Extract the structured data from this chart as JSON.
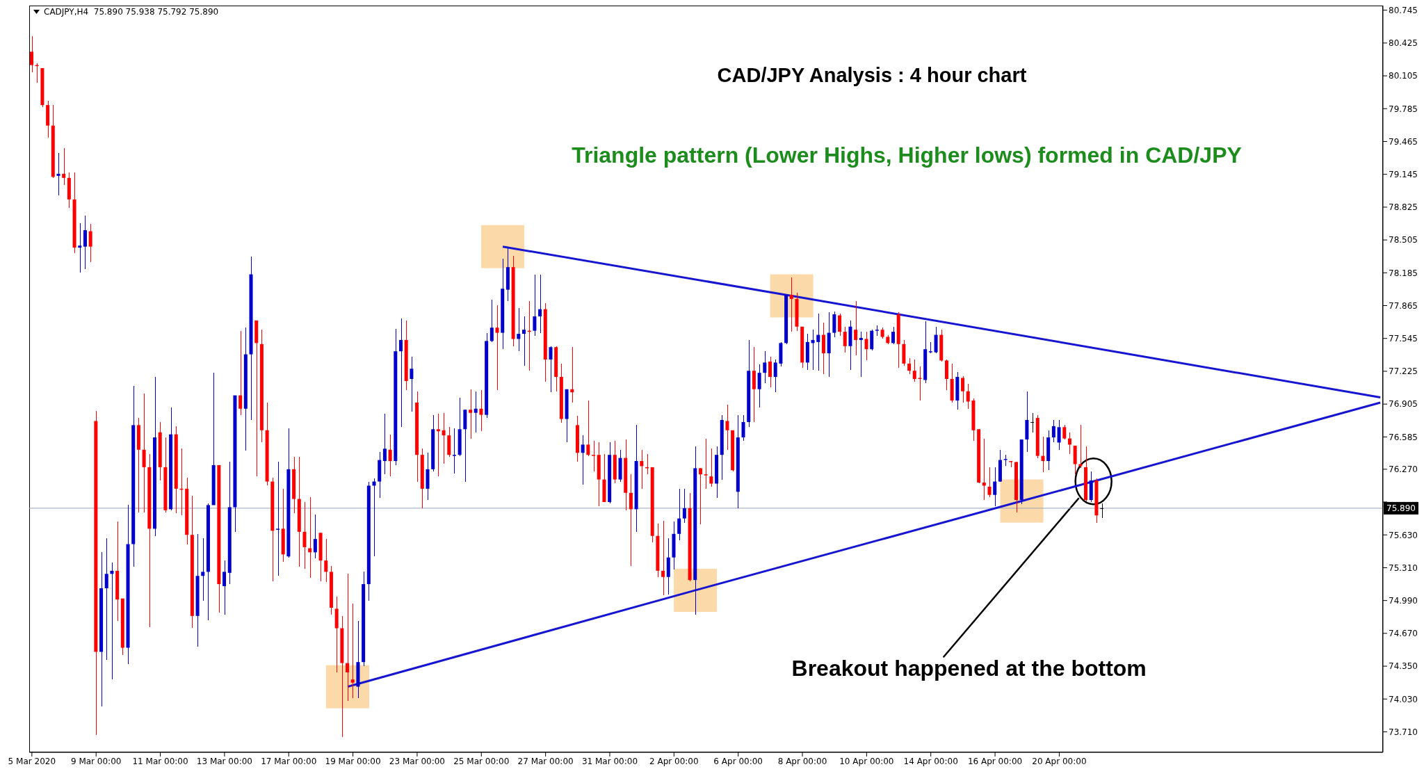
{
  "chart_data": {
    "type": "candlestick",
    "title": "CAD/JPY Analysis : 4 hour chart",
    "subtitle": "Triangle pattern (Lower Highs, Higher lows) formed in CAD/JPY",
    "annotations": [
      "CADJPY,H4  75.890 75.938 75.792 75.890",
      "Breakout happened at the bottom"
    ],
    "categories": [
      "5 Mar 2020",
      null,
      null,
      null,
      null,
      null,
      null,
      null,
      null,
      null,
      null,
      null,
      "9 Mar 00:00",
      null,
      null,
      null,
      null,
      null,
      null,
      null,
      null,
      null,
      null,
      null,
      "11 Mar 00:00",
      null,
      null,
      null,
      null,
      null,
      null,
      null,
      null,
      null,
      null,
      null,
      "13 Mar 00:00",
      null,
      null,
      null,
      null,
      null,
      null,
      null,
      null,
      null,
      null,
      null,
      "17 Mar 00:00",
      null,
      null,
      null,
      null,
      null,
      null,
      null,
      null,
      null,
      null,
      null,
      "19 Mar 00:00",
      null,
      null,
      null,
      null,
      null,
      null,
      null,
      null,
      null,
      null,
      null,
      "23 Mar 00:00",
      null,
      null,
      null,
      null,
      null,
      null,
      null,
      null,
      null,
      null,
      null,
      "25 Mar 00:00",
      null,
      null,
      null,
      null,
      null,
      null,
      null,
      null,
      null,
      null,
      null,
      "27 Mar 00:00",
      null,
      null,
      null,
      null,
      null,
      null,
      null,
      null,
      null,
      null,
      null,
      "31 Mar 00:00",
      null,
      null,
      null,
      null,
      null,
      null,
      null,
      null,
      null,
      null,
      null,
      "2 Apr 00:00",
      null,
      null,
      null,
      null,
      null,
      null,
      null,
      null,
      null,
      null,
      null,
      "6 Apr 00:00",
      null,
      null,
      null,
      null,
      null,
      null,
      null,
      null,
      null,
      null,
      null,
      "8 Apr 00:00",
      null,
      null,
      null,
      null,
      null,
      null,
      null,
      null,
      null,
      null,
      null,
      "10 Apr 00:00",
      null,
      null,
      null,
      null,
      null,
      null,
      null,
      null,
      null,
      null,
      null,
      "14 Apr 00:00",
      null,
      null,
      null,
      null,
      null,
      null,
      null,
      null,
      null,
      null,
      null,
      "16 Apr 00:00",
      null,
      null,
      null,
      null,
      null,
      null,
      null,
      null,
      null,
      null,
      null,
      "20 Apr 00:00",
      null,
      null,
      null,
      null,
      null,
      null,
      null,
      null,
      null,
      null,
      null,
      null,
      null,
      null,
      null,
      null,
      null,
      null,
      null,
      null,
      null,
      null,
      null,
      null,
      null,
      null,
      null,
      null,
      null,
      null,
      null,
      null,
      null,
      null,
      null,
      null,
      null,
      null,
      null,
      null,
      null,
      null,
      null,
      null,
      null,
      null,
      null,
      null,
      null,
      null,
      null,
      null,
      null,
      null,
      null,
      null,
      null,
      null,
      null,
      null
    ],
    "ohlc": [
      [
        80.34,
        80.49,
        80.14,
        80.21
      ],
      [
        80.21,
        80.23,
        80.04,
        80.2
      ],
      [
        80.18,
        80.18,
        79.8,
        79.82
      ],
      [
        79.82,
        79.86,
        79.5,
        79.62
      ],
      [
        79.62,
        79.82,
        79.11,
        79.12
      ],
      [
        79.13,
        79.35,
        78.94,
        79.15
      ],
      [
        79.15,
        79.4,
        79.04,
        79.11
      ],
      [
        79.11,
        79.16,
        78.82,
        78.9
      ],
      [
        78.9,
        79.16,
        78.38,
        78.43
      ],
      [
        78.43,
        78.67,
        78.19,
        78.45
      ],
      [
        78.44,
        78.74,
        78.22,
        78.6
      ],
      [
        78.59,
        78.66,
        78.29,
        78.44
      ],
      [
        76.74,
        76.84,
        73.68,
        74.49
      ],
      [
        74.49,
        75.46,
        73.96,
        75.11
      ],
      [
        75.11,
        75.6,
        74.41,
        75.25
      ],
      [
        75.25,
        75.36,
        74.22,
        75.28
      ],
      [
        75.28,
        75.76,
        74.79,
        75
      ],
      [
        75.01,
        75.01,
        74.46,
        74.53
      ],
      [
        74.53,
        75.92,
        74.37,
        75.54
      ],
      [
        75.54,
        77.08,
        75.32,
        76.7
      ],
      [
        76.7,
        76.77,
        75.85,
        76.46
      ],
      [
        76.46,
        77.01,
        75.85,
        76.29
      ],
      [
        76.29,
        76.42,
        74.73,
        75.69
      ],
      [
        75.69,
        77.17,
        75.62,
        76.58
      ],
      [
        76.63,
        76.73,
        76.16,
        76.29
      ],
      [
        76.29,
        76.58,
        75.85,
        75.87
      ],
      [
        75.88,
        76.87,
        75.87,
        76.61
      ],
      [
        76.61,
        76.69,
        75.84,
        76.08
      ],
      [
        76.08,
        76.47,
        75.82,
        76.07
      ],
      [
        76.08,
        76.19,
        75.54,
        75.63
      ],
      [
        75.63,
        76.01,
        74.72,
        74.84
      ],
      [
        74.84,
        75.64,
        74.54,
        75.23
      ],
      [
        75.23,
        75.6,
        74.99,
        75.27
      ],
      [
        75.27,
        75.94,
        74.8,
        75.92
      ],
      [
        75.92,
        77.21,
        75.92,
        76.31
      ],
      [
        76.31,
        76.31,
        74.87,
        75.15
      ],
      [
        75.13,
        75.38,
        74.85,
        75.27
      ],
      [
        75.26,
        76.34,
        75.15,
        75.9
      ],
      [
        75.9,
        76.99,
        75.66,
        76.99
      ],
      [
        76.99,
        77.62,
        76.8,
        76.86
      ],
      [
        76.86,
        77.65,
        76.45,
        77.39
      ],
      [
        77.39,
        78.34,
        76.75,
        78.17
      ],
      [
        77.72,
        77.72,
        76.2,
        77.5
      ],
      [
        77.49,
        77.63,
        76.53,
        76.65
      ],
      [
        76.65,
        76.92,
        76.11,
        76.15
      ],
      [
        76.15,
        76.19,
        75.18,
        75.67
      ],
      [
        75.68,
        76.34,
        75.23,
        75.69
      ],
      [
        75.69,
        76.08,
        75.37,
        75.44
      ],
      [
        75.42,
        76.67,
        75.41,
        76.27
      ],
      [
        76.27,
        76.39,
        75.84,
        75.98
      ],
      [
        75.98,
        76.39,
        75.32,
        75.66
      ],
      [
        75.66,
        75.95,
        75.3,
        75.51
      ],
      [
        75.5,
        76,
        75.21,
        75.46
      ],
      [
        75.46,
        75.83,
        75.4,
        75.59
      ],
      [
        75.65,
        75.65,
        75.18,
        75.38
      ],
      [
        75.38,
        75.59,
        75.17,
        75.27
      ],
      [
        75.27,
        75.33,
        74.85,
        74.92
      ],
      [
        74.91,
        75.03,
        74.29,
        74.72
      ],
      [
        74.72,
        74.84,
        73.66,
        74.38
      ],
      [
        74.38,
        75.25,
        74.01,
        74.29
      ],
      [
        74.22,
        74.96,
        74.04,
        74.19
      ],
      [
        74.15,
        74.79,
        74.04,
        74.39
      ],
      [
        74.39,
        75.27,
        74.35,
        75.15
      ],
      [
        75.15,
        76.15,
        74.99,
        76.11
      ],
      [
        76.11,
        76.18,
        75.42,
        76.15
      ],
      [
        76.15,
        76.44,
        75.99,
        76.36
      ],
      [
        76.35,
        76.81,
        76.22,
        76.47
      ],
      [
        76.46,
        76.61,
        76.2,
        76.35
      ],
      [
        76.35,
        77.64,
        76.31,
        77.42
      ],
      [
        77.42,
        77.74,
        76.68,
        77.53
      ],
      [
        77.53,
        77.72,
        77.04,
        77.13
      ],
      [
        77.15,
        77.37,
        76.83,
        77.25
      ],
      [
        76.92,
        77.03,
        76.15,
        76.41
      ],
      [
        76.41,
        76.47,
        75.89,
        76.08
      ],
      [
        76.08,
        76.43,
        75.97,
        76.27
      ],
      [
        76.27,
        76.8,
        76.25,
        76.66
      ],
      [
        76.66,
        76.81,
        76.2,
        76.64
      ],
      [
        76.65,
        76.82,
        76.32,
        76.6
      ],
      [
        76.6,
        76.68,
        76.39,
        76.41
      ],
      [
        76.4,
        76.67,
        76.23,
        76.41
      ],
      [
        76.41,
        76.97,
        76.4,
        76.66
      ],
      [
        76.66,
        76.85,
        76.15,
        76.85
      ],
      [
        76.85,
        77.05,
        76.57,
        76.82
      ],
      [
        76.82,
        77.03,
        76.63,
        76.86
      ],
      [
        76.86,
        77.04,
        76.64,
        76.8
      ],
      [
        76.8,
        77.6,
        76.77,
        77.52
      ],
      [
        77.52,
        77.92,
        77.51,
        77.65
      ],
      [
        77.65,
        77.87,
        77.04,
        77.6
      ],
      [
        77.6,
        78.32,
        77.44,
        78.03
      ],
      [
        78.02,
        78.44,
        77.91,
        78.24
      ],
      [
        78.24,
        78.35,
        77.47,
        77.54
      ],
      [
        77.54,
        77.84,
        77.42,
        77.59
      ],
      [
        77.59,
        77.76,
        77.28,
        77.63
      ],
      [
        77.62,
        77.91,
        77.23,
        77.61
      ],
      [
        77.62,
        78.17,
        77.57,
        77.76
      ],
      [
        77.76,
        78.17,
        77.6,
        77.83
      ],
      [
        77.83,
        77.89,
        77.12,
        77.34
      ],
      [
        77.34,
        77.47,
        77.02,
        77.46
      ],
      [
        77.46,
        77.47,
        77.03,
        77.17
      ],
      [
        77.17,
        77.3,
        76.72,
        76.76
      ],
      [
        76.76,
        77.05,
        76.53,
        77.05
      ],
      [
        77.05,
        77.46,
        76.92,
        77.02
      ],
      [
        76.7,
        76.79,
        76.34,
        76.43
      ],
      [
        76.43,
        76.6,
        76.12,
        76.51
      ],
      [
        76.51,
        76.94,
        76.4,
        76.41
      ],
      [
        76.41,
        76.55,
        76.25,
        76.4
      ],
      [
        76.41,
        76.53,
        75.91,
        76.17
      ],
      [
        76.17,
        76.42,
        75.95,
        75.95
      ],
      [
        75.95,
        76.53,
        75.94,
        76.41
      ],
      [
        76.41,
        76.55,
        76.13,
        76.17
      ],
      [
        76.17,
        76.46,
        76.15,
        76.38
      ],
      [
        76.38,
        76.56,
        75.87,
        76.04
      ],
      [
        76.04,
        76.22,
        75.33,
        75.88
      ],
      [
        75.88,
        76.7,
        75.66,
        76.35
      ],
      [
        76.35,
        76.46,
        76.08,
        76.3
      ],
      [
        76.29,
        76.42,
        76.22,
        76.28
      ],
      [
        76.29,
        76.29,
        75.56,
        75.62
      ],
      [
        75.62,
        75.74,
        75.22,
        75.28
      ],
      [
        75.28,
        75.77,
        75.04,
        75.22
      ],
      [
        75.22,
        75.6,
        75.05,
        75.41
      ],
      [
        75.41,
        75.76,
        75.29,
        75.64
      ],
      [
        75.64,
        76.08,
        75.58,
        75.79
      ],
      [
        75.79,
        76.08,
        75.75,
        75.89
      ],
      [
        75.89,
        76.04,
        75.18,
        75.19
      ],
      [
        75.19,
        76.49,
        74.85,
        76.28
      ],
      [
        76.28,
        76.28,
        75.73,
        76.22
      ],
      [
        76.22,
        76.57,
        76.08,
        76.21
      ],
      [
        76.2,
        76.47,
        76.1,
        76.13
      ],
      [
        76.13,
        76.49,
        75.99,
        76.41
      ],
      [
        76.41,
        76.8,
        76.17,
        76.75
      ],
      [
        76.74,
        76.9,
        76.46,
        76.65
      ],
      [
        76.65,
        76.65,
        76.25,
        76.26
      ],
      [
        76.05,
        76.8,
        75.89,
        76.58
      ],
      [
        76.58,
        76.8,
        76.55,
        76.73
      ],
      [
        76.73,
        77.53,
        76.68,
        77.23
      ],
      [
        77.23,
        77.46,
        76.73,
        77.05
      ],
      [
        77.05,
        77.29,
        76.87,
        77.21
      ],
      [
        77.21,
        77.42,
        77.11,
        77.31
      ],
      [
        77.32,
        77.37,
        77.07,
        77.17
      ],
      [
        77.17,
        77.34,
        77.02,
        77.31
      ],
      [
        77.3,
        77.51,
        77.27,
        77.5
      ],
      [
        77.5,
        77.97,
        77.49,
        77.97
      ],
      [
        77.97,
        78.14,
        77.61,
        77.93
      ],
      [
        77.93,
        77.99,
        77.62,
        77.66
      ],
      [
        77.66,
        77.66,
        77.26,
        77.31
      ],
      [
        77.31,
        77.59,
        77.24,
        77.51
      ],
      [
        77.5,
        77.63,
        77.24,
        77.53
      ],
      [
        77.51,
        77.79,
        77.23,
        77.58
      ],
      [
        77.58,
        77.7,
        77.2,
        77.4
      ],
      [
        77.4,
        77.8,
        77.17,
        77.6
      ],
      [
        77.6,
        77.81,
        77.56,
        77.78
      ],
      [
        77.77,
        77.79,
        77.57,
        77.61
      ],
      [
        77.61,
        77.66,
        77.41,
        77.47
      ],
      [
        77.47,
        77.72,
        77.24,
        77.66
      ],
      [
        77.63,
        77.91,
        77.38,
        77.53
      ],
      [
        77.53,
        77.61,
        77.17,
        77.55
      ],
      [
        77.54,
        77.61,
        77.33,
        77.44
      ],
      [
        77.44,
        77.63,
        77.43,
        77.62
      ],
      [
        77.62,
        77.67,
        77.57,
        77.63
      ],
      [
        77.63,
        77.65,
        77.54,
        77.56
      ],
      [
        77.56,
        77.58,
        77.49,
        77.5
      ],
      [
        77.5,
        77.66,
        77.49,
        77.61
      ],
      [
        77.78,
        77.8,
        77.26,
        77.49
      ],
      [
        77.49,
        77.53,
        77.28,
        77.3
      ],
      [
        77.3,
        77.35,
        77.2,
        77.23
      ],
      [
        77.23,
        77.34,
        77.12,
        77.15
      ],
      [
        77.16,
        77.27,
        76.94,
        77.15
      ],
      [
        77.14,
        77.71,
        77.11,
        77.44
      ],
      [
        77.41,
        77.51,
        77.4,
        77.42
      ],
      [
        77.41,
        77.66,
        77.4,
        77.58
      ],
      [
        77.58,
        77.63,
        77.32,
        77.33
      ],
      [
        77.33,
        77.34,
        77.04,
        77.15
      ],
      [
        77.15,
        77.3,
        76.92,
        76.94
      ],
      [
        76.94,
        77.22,
        76.85,
        77.17
      ],
      [
        77.16,
        77.18,
        76.92,
        77.03
      ],
      [
        77.03,
        77.1,
        76.86,
        76.93
      ],
      [
        76.94,
        76.96,
        76.55,
        76.65
      ],
      [
        76.66,
        76.66,
        76.13,
        76.14
      ],
      [
        76.14,
        76.57,
        75.97,
        76.11
      ],
      [
        76.1,
        76.29,
        76,
        76.02
      ],
      [
        76.02,
        76.29,
        75.91,
        76.15
      ],
      [
        76.15,
        76.46,
        76.15,
        76.36
      ],
      [
        76.36,
        76.41,
        76.3,
        76.37
      ],
      [
        76.35,
        76.35,
        76.29,
        76.34
      ],
      [
        76.34,
        76.34,
        75.85,
        75.97
      ],
      [
        75.97,
        76.56,
        75.93,
        76.56
      ],
      [
        76.56,
        77.03,
        76.44,
        76.75
      ],
      [
        76.73,
        76.82,
        76.63,
        76.73
      ],
      [
        76.77,
        76.8,
        76.38,
        76.4
      ],
      [
        76.4,
        76.59,
        76.24,
        76.35
      ],
      [
        76.35,
        76.65,
        76.26,
        76.58
      ],
      [
        76.58,
        76.75,
        76.53,
        76.69
      ],
      [
        76.53,
        76.75,
        76.46,
        76.68
      ],
      [
        76.68,
        76.7,
        76.56,
        76.57
      ],
      [
        76.57,
        76.63,
        76.42,
        76.51
      ],
      [
        76.5,
        76.5,
        76.22,
        76.32
      ],
      [
        76.32,
        76.7,
        76.28,
        76.3
      ],
      [
        76.29,
        76.49,
        75.96,
        75.97
      ],
      [
        75.97,
        76.25,
        75.95,
        76.16
      ],
      [
        76.16,
        76.18,
        75.75,
        75.82
      ],
      [
        75.89,
        75.938,
        75.792,
        75.89
      ],
      null,
      null,
      null,
      null,
      null,
      null,
      null,
      null,
      null,
      null,
      null,
      null,
      null,
      null,
      null,
      null,
      null,
      null,
      null,
      null,
      null,
      null,
      null,
      null,
      null,
      null,
      null,
      null,
      null,
      null,
      null,
      null,
      null,
      null,
      null,
      null,
      null,
      null,
      null,
      null,
      null,
      null,
      null,
      null,
      null,
      null,
      null,
      null,
      null,
      null,
      null,
      null
    ],
    "colors": [
      "#ff0000",
      "#ff0000",
      "#ff0000",
      "#ff0000",
      "#ff0000",
      "#0000cc",
      "#ff0000",
      "#ff0000",
      "#ff0000",
      "#0000cc",
      "#0000cc",
      "#ff0000",
      "#ff0000",
      "#0000cc",
      "#0000cc",
      "#0000cc",
      "#ff0000",
      "#ff0000",
      "#0000cc",
      "#0000cc",
      "#ff0000",
      "#ff0000",
      "#ff0000",
      "#0000cc",
      "#ff0000",
      "#ff0000",
      "#0000cc",
      "#ff0000",
      "#ff0000",
      "#ff0000",
      "#ff0000",
      "#0000cc",
      "#0000cc",
      "#0000cc",
      "#0000cc",
      "#ff0000",
      "#0000cc",
      "#0000cc",
      "#0000cc",
      "#ff0000",
      "#0000cc",
      "#0000cc",
      "#ff0000",
      "#ff0000",
      "#ff0000",
      "#ff0000",
      "#0000cc",
      "#ff0000",
      "#0000cc",
      "#ff0000",
      "#ff0000",
      "#ff0000",
      "#ff0000",
      "#0000cc",
      "#ff0000",
      "#ff0000",
      "#ff0000",
      "#ff0000",
      "#ff0000",
      "#ff0000",
      "#ff0000",
      "#0000cc",
      "#0000cc",
      "#0000cc",
      "#0000cc",
      "#0000cc",
      "#0000cc",
      "#ff0000",
      "#0000cc",
      "#0000cc",
      "#ff0000",
      "#0000cc",
      "#ff0000",
      "#ff0000",
      "#0000cc",
      "#0000cc",
      "#ff0000",
      "#ff0000",
      "#ff0000",
      "#0000cc",
      "#0000cc",
      "#0000cc",
      "#ff0000",
      "#0000cc",
      "#ff0000",
      "#0000cc",
      "#0000cc",
      "#ff0000",
      "#0000cc",
      "#0000cc",
      "#ff0000",
      "#0000cc",
      "#0000cc",
      "#ff0000",
      "#0000cc",
      "#0000cc",
      "#ff0000",
      "#0000cc",
      "#ff0000",
      "#ff0000",
      "#0000cc",
      "#ff0000",
      "#ff0000",
      "#0000cc",
      "#ff0000",
      "#ff0000",
      "#ff0000",
      "#ff0000",
      "#0000cc",
      "#ff0000",
      "#0000cc",
      "#ff0000",
      "#ff0000",
      "#0000cc",
      "#ff0000",
      "#ff0000",
      "#ff0000",
      "#ff0000",
      "#ff0000",
      "#0000cc",
      "#0000cc",
      "#0000cc",
      "#0000cc",
      "#ff0000",
      "#0000cc",
      "#ff0000",
      "#ff0000",
      "#ff0000",
      "#0000cc",
      "#0000cc",
      "#ff0000",
      "#ff0000",
      "#0000cc",
      "#0000cc",
      "#0000cc",
      "#ff0000",
      "#0000cc",
      "#0000cc",
      "#ff0000",
      "#0000cc",
      "#0000cc",
      "#0000cc",
      "#ff0000",
      "#ff0000",
      "#ff0000",
      "#0000cc",
      "#0000cc",
      "#0000cc",
      "#ff0000",
      "#0000cc",
      "#0000cc",
      "#ff0000",
      "#ff0000",
      "#0000cc",
      "#ff0000",
      "#0000cc",
      "#ff0000",
      "#0000cc",
      "#0000cc",
      "#ff0000",
      "#ff0000",
      "#0000cc",
      "#ff0000",
      "#ff0000",
      "#ff0000",
      "#ff0000",
      "#ff0000",
      "#0000cc",
      "#0000cc",
      "#0000cc",
      "#ff0000",
      "#ff0000",
      "#ff0000",
      "#0000cc",
      "#ff0000",
      "#ff0000",
      "#ff0000",
      "#ff0000",
      "#ff0000",
      "#ff0000",
      "#0000cc",
      "#0000cc",
      "#0000cc",
      "#ff0000",
      "#ff0000",
      "#0000cc",
      "#0000cc",
      "#000000",
      "#ff0000",
      "#ff0000",
      "#0000cc",
      "#0000cc",
      "#0000cc",
      "#ff0000",
      "#ff0000",
      "#ff0000",
      "#ff0000",
      "#ff0000",
      "#0000cc",
      "#ff0000",
      "#000000",
      null,
      null,
      null,
      null,
      null,
      null,
      null,
      null,
      null,
      null,
      null,
      null,
      null,
      null,
      null,
      null,
      null,
      null,
      null,
      null,
      null,
      null,
      null,
      null,
      null,
      null,
      null,
      null,
      null,
      null,
      null,
      null,
      null,
      null,
      null,
      null,
      null,
      null,
      null,
      null,
      null,
      null,
      null,
      null,
      null,
      null,
      null,
      null,
      null,
      null,
      null,
      null
    ],
    "series": [
      {
        "type": "line",
        "color": "#1515d2",
        "values": [
          null,
          null,
          null,
          null,
          null,
          null,
          null,
          null,
          null,
          null,
          null,
          null,
          null,
          null,
          null,
          null,
          null,
          null,
          null,
          null,
          null,
          null,
          null,
          null,
          null,
          null,
          null,
          null,
          null,
          null,
          null,
          null,
          null,
          null,
          null,
          null,
          null,
          null,
          null,
          null,
          null,
          null,
          null,
          null,
          null,
          null,
          null,
          null,
          null,
          null,
          null,
          null,
          null,
          null,
          null,
          null,
          null,
          null,
          null,
          null,
          null,
          null,
          null,
          null,
          null,
          null,
          null,
          null,
          null,
          null,
          null,
          null,
          null,
          null,
          null,
          null,
          null,
          null,
          null,
          null,
          null,
          null,
          null,
          null,
          null,
          null,
          null,
          null,
          78.44,
          null,
          null,
          null,
          null,
          null,
          null,
          null,
          null,
          null,
          null,
          null,
          null,
          null,
          null,
          null,
          null,
          null,
          null,
          null,
          null,
          null,
          null,
          null,
          null,
          null,
          null,
          null,
          null,
          null,
          null,
          null,
          null,
          null,
          null,
          null,
          null,
          null,
          null,
          null,
          null,
          null,
          null,
          null,
          null,
          null,
          null,
          null,
          null,
          null,
          null,
          null,
          null,
          null,
          77.96,
          null,
          null,
          null,
          null,
          null,
          null,
          null,
          null,
          null,
          null,
          null,
          null,
          null,
          null,
          null,
          null,
          null,
          null,
          null,
          null,
          null,
          null,
          null,
          null,
          null,
          null,
          null,
          null,
          null,
          null,
          null,
          null,
          null,
          null,
          null,
          null,
          null,
          null,
          null,
          null,
          null,
          null,
          null,
          null,
          null,
          null,
          null,
          null,
          null,
          null,
          null,
          null,
          null,
          null,
          null,
          null,
          null,
          null,
          null,
          null,
          null,
          null,
          null,
          null,
          null,
          null,
          null,
          null,
          null,
          null,
          null,
          null,
          null,
          null,
          null,
          null,
          null,
          null,
          null,
          null,
          null,
          null,
          null,
          null,
          null,
          null,
          null,
          null,
          null,
          null,
          null,
          null,
          null,
          null,
          null,
          null,
          null,
          null,
          null,
          null,
          null,
          null,
          null,
          null,
          null,
          null,
          null,
          null,
          null,
          76.97
        ]
      },
      {
        "type": "line",
        "color": "#1515d2",
        "values": [
          null,
          null,
          null,
          null,
          null,
          null,
          null,
          null,
          null,
          null,
          null,
          null,
          null,
          null,
          null,
          null,
          null,
          null,
          null,
          null,
          null,
          null,
          null,
          null,
          null,
          null,
          null,
          null,
          null,
          null,
          null,
          null,
          null,
          null,
          null,
          null,
          null,
          null,
          null,
          null,
          null,
          null,
          null,
          null,
          null,
          null,
          null,
          null,
          null,
          null,
          null,
          null,
          null,
          null,
          null,
          null,
          null,
          null,
          null,
          74.15,
          null,
          null,
          null,
          null,
          null,
          null,
          null,
          null,
          null,
          null,
          null,
          null,
          null,
          null,
          null,
          null,
          null,
          null,
          null,
          null,
          null,
          null,
          null,
          null,
          null,
          null,
          null,
          null,
          null,
          null,
          null,
          null,
          null,
          null,
          null,
          null,
          null,
          null,
          null,
          null,
          null,
          null,
          null,
          null,
          null,
          null,
          null,
          null,
          null,
          null,
          null,
          null,
          null,
          null,
          null,
          null,
          null,
          null,
          null,
          null,
          null,
          null,
          null,
          null,
          75.09,
          null,
          null,
          null,
          null,
          null,
          null,
          null,
          null,
          null,
          null,
          null,
          null,
          null,
          null,
          null,
          null,
          null,
          null,
          null,
          null,
          null,
          null,
          null,
          null,
          null,
          null,
          null,
          null,
          null,
          null,
          null,
          null,
          null,
          null,
          null,
          null,
          null,
          null,
          null,
          null,
          null,
          null,
          null,
          null,
          null,
          null,
          null,
          null,
          null,
          null,
          null,
          null,
          null,
          null,
          null,
          null,
          null,
          null,
          null,
          null,
          75.96,
          null,
          null,
          null,
          null,
          null,
          null,
          null,
          null,
          null,
          null,
          null,
          null,
          null,
          null,
          null,
          null,
          null,
          null,
          null,
          null,
          null,
          null,
          null,
          null,
          null,
          null,
          null,
          null,
          null,
          null,
          null,
          null,
          null,
          null,
          null,
          null,
          null,
          null,
          null,
          null,
          null,
          null,
          null,
          null,
          null,
          null,
          null,
          null,
          null,
          null,
          null,
          null,
          null,
          null,
          null,
          null,
          null,
          null,
          null,
          null,
          null,
          null,
          null,
          null,
          null,
          null,
          76.92
        ]
      }
    ],
    "ylim": [
      73.51,
      80.79
    ],
    "yticks": [
      {
        "value": 73.71,
        "label": "73.710"
      },
      {
        "value": 74.03,
        "label": "74.030"
      },
      {
        "value": 74.35,
        "label": "74.350"
      },
      {
        "value": 74.67,
        "label": "74.670"
      },
      {
        "value": 74.99,
        "label": "74.990"
      },
      {
        "value": 75.31,
        "label": "75.310"
      },
      {
        "value": 75.63,
        "label": "75.630"
      },
      {
        "value": 75.95,
        "label": null
      },
      {
        "value": 76.27,
        "label": "76.270"
      },
      76.585,
      76.905,
      77.225,
      77.545,
      77.865,
      78.185,
      78.505,
      78.825,
      79.145,
      79.465,
      79.785,
      80.105,
      80.425,
      80.745
    ],
    "ref_lines": [
      {
        "axis": "y",
        "value": 75.89,
        "label": "75.890",
        "color": "#98a4b8"
      }
    ]
  }
}
